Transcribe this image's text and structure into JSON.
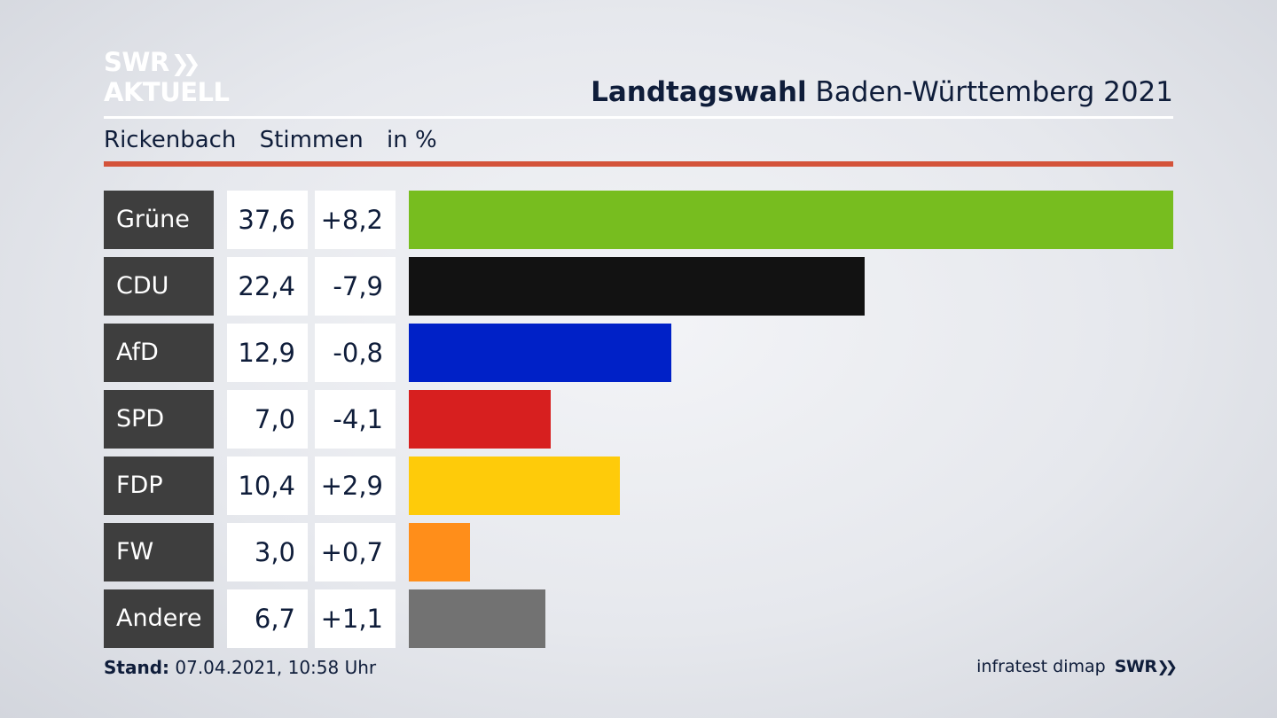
{
  "logo": {
    "line1": "SWR",
    "line2": "AKTUELL"
  },
  "header": {
    "title_bold": "Landtagswahl",
    "title_rest": " Baden-Württemberg 2021"
  },
  "subheader": {
    "place": "Rickenbach",
    "metric": "Stimmen",
    "unit": "in %"
  },
  "colors": {
    "accent_rule": "#d4533a"
  },
  "chart_data": {
    "type": "bar",
    "orientation": "horizontal",
    "title": "Landtagswahl Baden-Württemberg 2021",
    "categories": [
      "Grüne",
      "CDU",
      "AfD",
      "SPD",
      "FDP",
      "FW",
      "Andere"
    ],
    "values": [
      37.6,
      22.4,
      12.9,
      7.0,
      10.4,
      3.0,
      6.7
    ],
    "value_labels": [
      "37,6",
      "22,4",
      "12,9",
      "7,0",
      "10,4",
      "3,0",
      "6,7"
    ],
    "diffs": [
      8.2,
      -7.9,
      -0.8,
      -4.1,
      2.9,
      0.7,
      1.1
    ],
    "diff_labels": [
      "+8,2",
      "-7,9",
      "-0,8",
      "-4,1",
      "+2,9",
      "+0,7",
      "+1,1"
    ],
    "colors": [
      "#77bd1f",
      "#121212",
      "#0021c7",
      "#d71f1f",
      "#fecb0a",
      "#ff8e1a",
      "#727272"
    ],
    "xlim": [
      0,
      37.6
    ],
    "grid": false,
    "legend": "none"
  },
  "footer": {
    "stand_label": "Stand:",
    "stand_value": " 07.04.2021, 10:58 Uhr",
    "source": "infratest dimap",
    "brand": "SWR"
  }
}
